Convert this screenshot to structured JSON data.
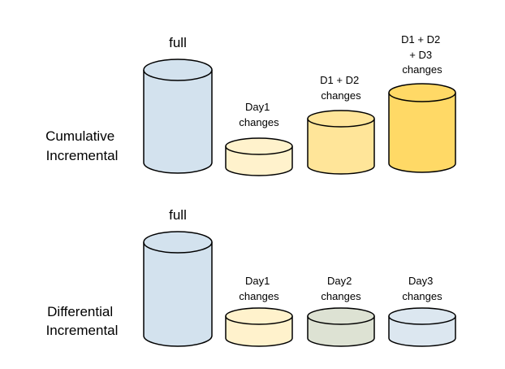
{
  "rows": [
    {
      "id": "cumulative",
      "label_lines": [
        "Cumulative",
        "Incremental"
      ],
      "cylinders": [
        {
          "label_lines": [
            "full"
          ],
          "fill": "#d3e2ee"
        },
        {
          "label_lines": [
            "Day1",
            "changes"
          ],
          "fill": "#fff2cc"
        },
        {
          "label_lines": [
            "D1 + D2",
            "changes"
          ],
          "fill": "#ffe599"
        },
        {
          "label_lines": [
            "D1 + D2",
            "+ D3",
            "changes"
          ],
          "fill": "#ffd966"
        }
      ]
    },
    {
      "id": "differential",
      "label_lines": [
        "Differential",
        "Incremental"
      ],
      "cylinders": [
        {
          "label_lines": [
            "full"
          ],
          "fill": "#d3e2ee"
        },
        {
          "label_lines": [
            "Day1",
            "changes"
          ],
          "fill": "#fff2cc"
        },
        {
          "label_lines": [
            "Day2",
            "changes"
          ],
          "fill": "#dde2d3"
        },
        {
          "label_lines": [
            "Day3",
            "changes"
          ],
          "fill": "#dce7f0"
        }
      ]
    }
  ],
  "colors": {
    "stroke": "#000000",
    "text": "#000000",
    "background": "#ffffff"
  }
}
